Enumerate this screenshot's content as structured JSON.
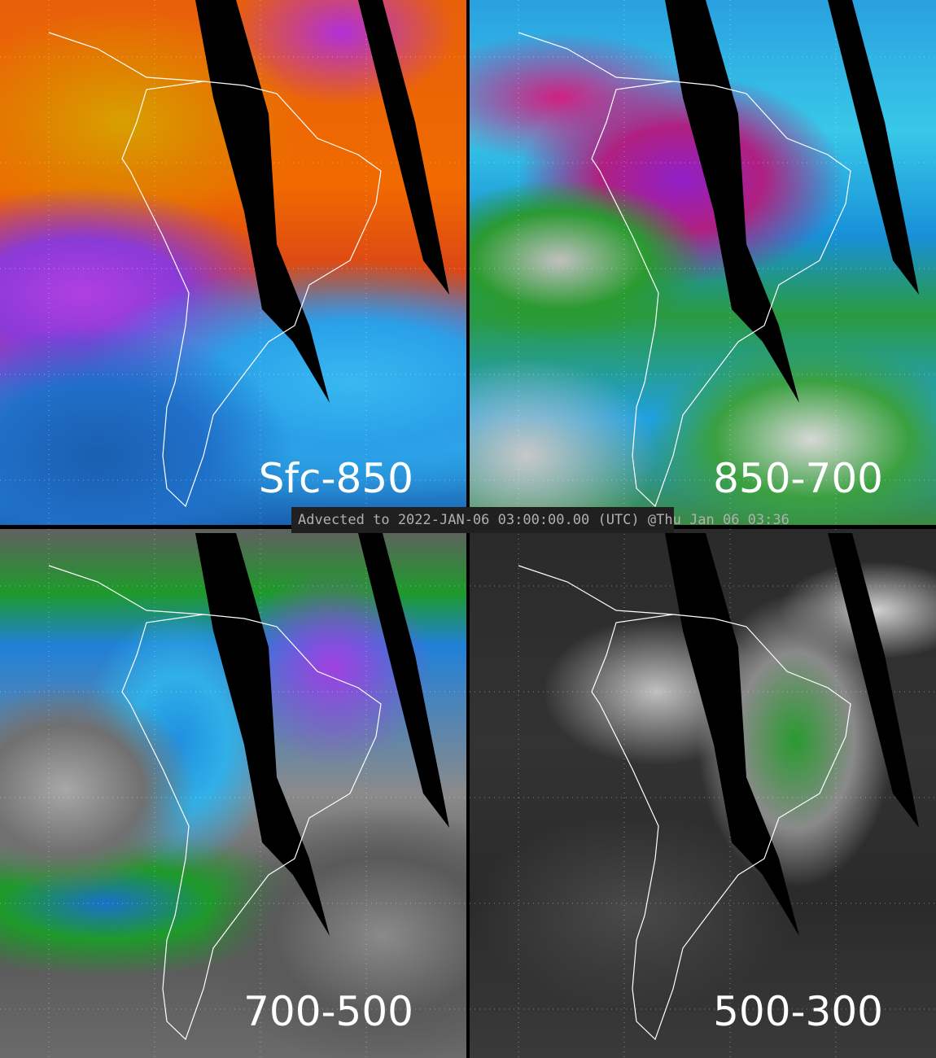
{
  "panels": [
    {
      "label": "Sfc-850"
    },
    {
      "label": "850-700"
    },
    {
      "label": "700-500"
    },
    {
      "label": "500-300"
    }
  ],
  "banner": {
    "text": "Advected to 2022-JAN-06 03:00:00.00 (UTC) @Thu Jan 06 03:36"
  }
}
